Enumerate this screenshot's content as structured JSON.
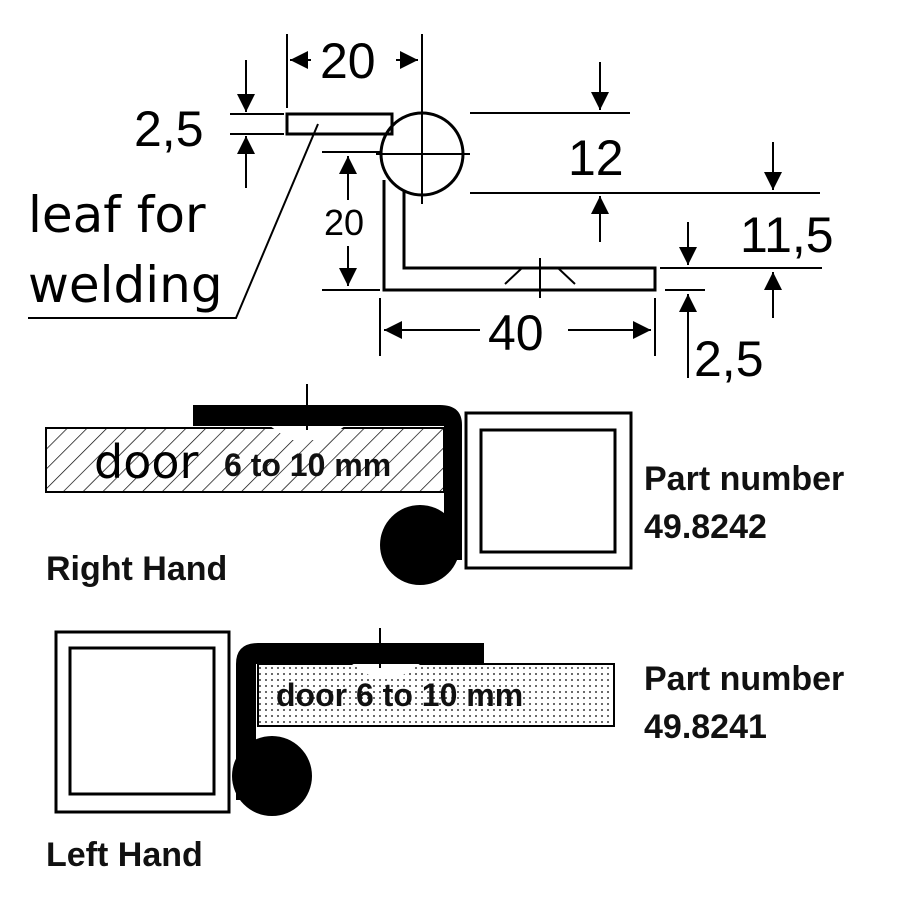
{
  "drawing": {
    "dim_top_width": "20",
    "dim_leaf_thickness": "2,5",
    "dim_vertical": "20",
    "dim_knuckle": "12",
    "dim_offset": "11,5",
    "dim_bottom_width": "40",
    "dim_bottom_thickness": "2,5",
    "leaf_note_line1": "leaf for",
    "leaf_note_line2": "welding"
  },
  "right_hand": {
    "door_label": "door",
    "door_size": "6 to 10 mm",
    "part_label": "Part number",
    "part_number": "49.8242",
    "hand_label": "Right Hand"
  },
  "left_hand": {
    "door_label": "door 6 to 10 mm",
    "part_label": "Part number",
    "part_number": "49.8241",
    "hand_label": "Left Hand"
  },
  "colors": {
    "ink": "#000000",
    "label": "#111111",
    "background": "#ffffff"
  }
}
